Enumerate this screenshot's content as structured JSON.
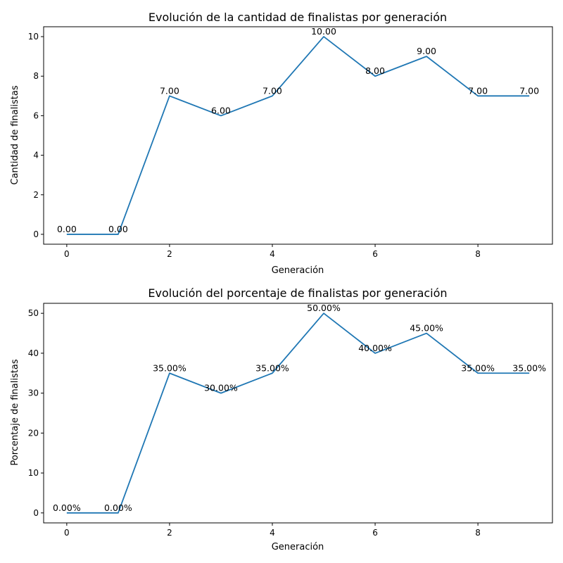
{
  "chart_data": [
    {
      "type": "line",
      "title": "Evolución de la cantidad de finalistas por generación",
      "xlabel": "Generación",
      "ylabel": "Cantidad de finalistas",
      "x": [
        0,
        1,
        2,
        3,
        4,
        5,
        6,
        7,
        8,
        9
      ],
      "values": [
        0,
        0,
        7,
        6,
        7,
        10,
        8,
        9,
        7,
        7
      ],
      "data_labels": [
        "0.00",
        "0.00",
        "7.00",
        "6.00",
        "7.00",
        "10.00",
        "8.00",
        "9.00",
        "7.00",
        "7.00"
      ],
      "xlim": [
        -0.45,
        9.45
      ],
      "ylim": [
        -0.5,
        10.5
      ],
      "xticks": [
        0,
        2,
        4,
        6,
        8
      ],
      "xtick_labels": [
        "0",
        "2",
        "4",
        "6",
        "8"
      ],
      "yticks": [
        0,
        2,
        4,
        6,
        8,
        10
      ],
      "ytick_labels": [
        "0",
        "2",
        "4",
        "6",
        "8",
        "10"
      ],
      "grid": false,
      "color": "#1f77b4"
    },
    {
      "type": "line",
      "title": "Evolución del porcentaje de finalistas por generación",
      "xlabel": "Generación",
      "ylabel": "Porcentaje de finalistas",
      "x": [
        0,
        1,
        2,
        3,
        4,
        5,
        6,
        7,
        8,
        9
      ],
      "values": [
        0,
        0,
        35,
        30,
        35,
        50,
        40,
        45,
        35,
        35
      ],
      "data_labels": [
        "0.00%",
        "0.00%",
        "35.00%",
        "30.00%",
        "35.00%",
        "50.00%",
        "40.00%",
        "45.00%",
        "35.00%",
        "35.00%"
      ],
      "xlim": [
        -0.45,
        9.45
      ],
      "ylim": [
        -2.5,
        52.5
      ],
      "xticks": [
        0,
        2,
        4,
        6,
        8
      ],
      "xtick_labels": [
        "0",
        "2",
        "4",
        "6",
        "8"
      ],
      "yticks": [
        0,
        10,
        20,
        30,
        40,
        50
      ],
      "ytick_labels": [
        "0",
        "10",
        "20",
        "30",
        "40",
        "50"
      ],
      "grid": false,
      "color": "#1f77b4"
    }
  ]
}
